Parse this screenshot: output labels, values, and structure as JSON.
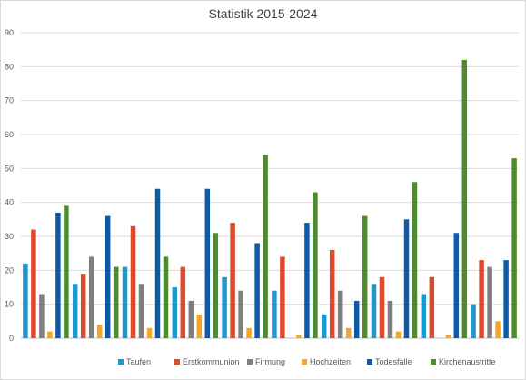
{
  "chart_data": {
    "type": "bar",
    "title": "Statistik 2015-2024",
    "xlabel": "",
    "ylabel": "",
    "ylim": [
      0,
      90
    ],
    "yticks": [
      0,
      10,
      20,
      30,
      40,
      50,
      60,
      70,
      80,
      90
    ],
    "categories": [
      "",
      "",
      "",
      "",
      "",
      "",
      "",
      "",
      "",
      ""
    ],
    "grid": true,
    "legend_position": "bottom",
    "series": [
      {
        "name": "Taufen",
        "color": "#1f98cf",
        "values": [
          22,
          16,
          21,
          15,
          18,
          14,
          7,
          16,
          13,
          10
        ]
      },
      {
        "name": "Erstkommunion",
        "color": "#e0492b",
        "values": [
          32,
          19,
          33,
          21,
          34,
          24,
          26,
          18,
          18,
          23
        ]
      },
      {
        "name": "Firmung",
        "color": "#7f7f7f",
        "values": [
          13,
          24,
          16,
          11,
          14,
          0,
          14,
          11,
          0,
          21
        ]
      },
      {
        "name": "Hochzeiten",
        "color": "#f5a623",
        "values": [
          2,
          4,
          3,
          7,
          3,
          1,
          3,
          2,
          1,
          5
        ]
      },
      {
        "name": "Todesfälle",
        "color": "#0e5aa7",
        "values": [
          37,
          36,
          44,
          44,
          28,
          34,
          11,
          35,
          31,
          23
        ]
      },
      {
        "name": "Kirchenaustritte",
        "color": "#4e8a2e",
        "values": [
          39,
          21,
          24,
          31,
          54,
          43,
          36,
          46,
          82,
          53
        ]
      }
    ]
  }
}
